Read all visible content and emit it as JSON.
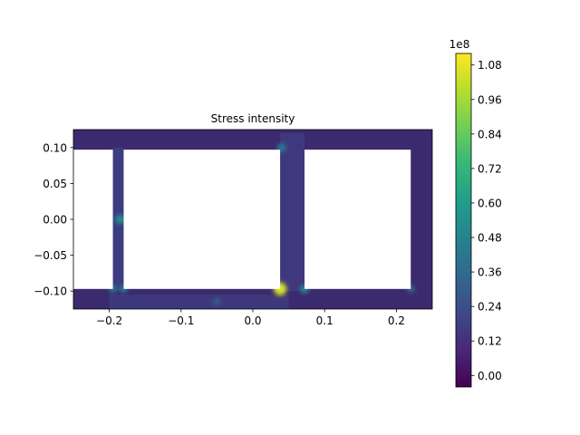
{
  "chart_data": {
    "type": "heatmap",
    "title": "Stress intensity",
    "xlabel": "",
    "ylabel": "",
    "xlim": [
      -0.25,
      0.25
    ],
    "ylim": [
      -0.125,
      0.125
    ],
    "x_ticks": [
      -0.2,
      -0.1,
      0.0,
      0.1,
      0.2
    ],
    "x_tick_labels": [
      "−0.2",
      "−0.1",
      "0.0",
      "0.1",
      "0.2"
    ],
    "y_ticks": [
      0.1,
      0.05,
      0.0,
      -0.05,
      -0.1
    ],
    "y_tick_labels": [
      "0.10",
      "0.05",
      "0.00",
      "−0.05",
      "−0.10"
    ],
    "colormap": "viridis",
    "colorbar": {
      "range": [
        -0.04,
        1.12
      ],
      "ticks": [
        0.0,
        0.12,
        0.24,
        0.36,
        0.48,
        0.6,
        0.72,
        0.84,
        0.96,
        1.08
      ],
      "tick_labels": [
        "0.00",
        "0.12",
        "0.24",
        "0.36",
        "0.48",
        "0.60",
        "0.72",
        "0.84",
        "0.96",
        "1.08"
      ],
      "multiplier": "1e8"
    },
    "holes": [
      {
        "x": [
          -0.25,
          -0.195
        ],
        "y": [
          -0.097,
          0.097
        ]
      },
      {
        "x": [
          -0.18,
          0.038
        ],
        "y": [
          -0.097,
          0.097
        ]
      },
      {
        "x": [
          0.072,
          0.22
        ],
        "y": [
          -0.097,
          0.097
        ]
      }
    ],
    "hotspots": [
      {
        "x": 0.038,
        "y": -0.097,
        "value": 1.05
      },
      {
        "x": -0.185,
        "y": 0.0,
        "value": 0.55
      },
      {
        "x": 0.04,
        "y": 0.1,
        "value": 0.45
      },
      {
        "x": 0.072,
        "y": -0.097,
        "value": 0.5
      },
      {
        "x": -0.195,
        "y": -0.097,
        "value": 0.4
      },
      {
        "x": -0.18,
        "y": -0.097,
        "value": 0.4
      },
      {
        "x": 0.22,
        "y": -0.097,
        "value": 0.35
      },
      {
        "x": -0.05,
        "y": -0.115,
        "value": 0.3
      }
    ],
    "grid": false
  }
}
